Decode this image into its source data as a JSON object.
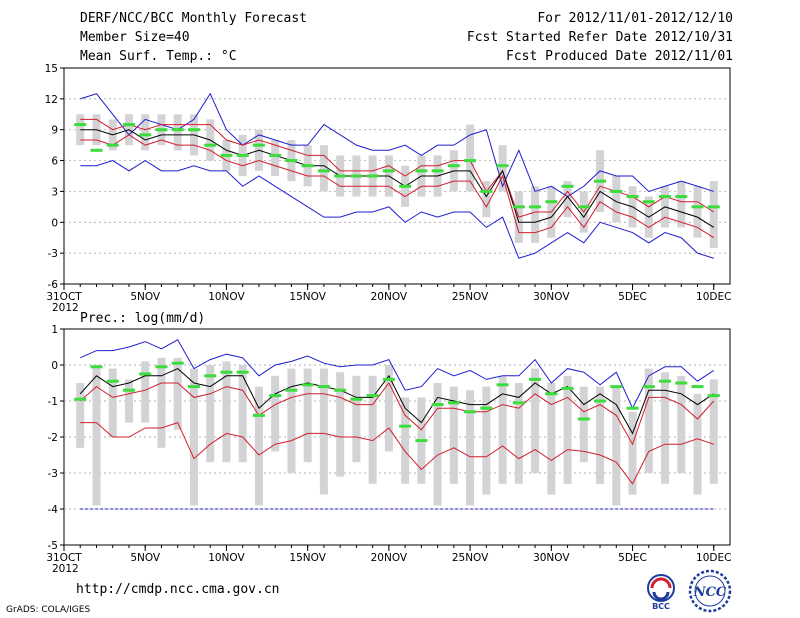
{
  "header": {
    "title": "DERF/NCC/BCC Monthly Forecast",
    "member_size": "Member Size=40",
    "variable": "Mean Surf. Temp.: °C",
    "period": "For 2012/11/01-2012/12/10",
    "fcst_start": "Fcst Started Refer Date 2012/10/31",
    "fcst_produced": "Fcst Produced Date 2012/11/01"
  },
  "footer": {
    "url": "http://cmdp.ncc.cma.gov.cn",
    "grads": "GrADS: COLA/IGES"
  },
  "logos": {
    "bcc": "BCC",
    "ncc": "NCC"
  },
  "colors": {
    "box": "#d3d3d6",
    "median": "#000000",
    "inner": "#d21e2d",
    "outer": "#1e1ed2",
    "obs": "#3cdc3c"
  },
  "chart_data": [
    {
      "type": "line",
      "title": "Mean Surf. Temp.: °C",
      "x": [
        1,
        2,
        3,
        4,
        5,
        6,
        7,
        8,
        9,
        10,
        11,
        12,
        13,
        14,
        15,
        16,
        17,
        18,
        19,
        20,
        21,
        22,
        23,
        24,
        25,
        26,
        27,
        28,
        29,
        30,
        31,
        32,
        33,
        34,
        35,
        36,
        37,
        38,
        39,
        40
      ],
      "x_ticks": [
        "31OCT",
        "5NOV",
        "10NOV",
        "15NOV",
        "20NOV",
        "25NOV",
        "30NOV",
        "5DEC",
        "10DEC"
      ],
      "x_tick_values": [
        0,
        5,
        10,
        15,
        20,
        25,
        30,
        35,
        40
      ],
      "x_first_sub": "2012",
      "ylim": [
        -6,
        15
      ],
      "y_ticks": [
        "-6",
        "-3",
        "0",
        "3",
        "6",
        "9",
        "12",
        "15"
      ],
      "y_tick_values": [
        -6,
        -3,
        0,
        3,
        6,
        9,
        12,
        15
      ],
      "series": [
        {
          "name": "Max",
          "color": "blue",
          "values": [
            12.0,
            12.5,
            10.5,
            8.5,
            10.0,
            9.5,
            9.0,
            10.0,
            12.5,
            9.0,
            7.5,
            8.5,
            8.0,
            7.5,
            7.5,
            9.5,
            8.5,
            7.5,
            7.0,
            7.0,
            7.5,
            6.5,
            7.5,
            7.5,
            8.5,
            9.0,
            3.5,
            7.0,
            3.0,
            3.5,
            2.5,
            3.5,
            5.0,
            4.5,
            4.5,
            3.0,
            3.5,
            4.0,
            3.5,
            3.0
          ]
        },
        {
          "name": "Upper",
          "color": "red",
          "values": [
            10.0,
            10.0,
            9.0,
            9.5,
            9.0,
            9.5,
            9.5,
            9.5,
            9.5,
            8.0,
            7.5,
            8.0,
            7.5,
            7.0,
            6.5,
            6.5,
            5.0,
            5.0,
            5.0,
            5.5,
            4.5,
            5.5,
            5.5,
            6.0,
            6.0,
            3.0,
            5.0,
            0.5,
            1.0,
            1.0,
            3.0,
            1.0,
            3.5,
            3.0,
            2.5,
            1.5,
            2.5,
            2.0,
            2.0,
            1.0
          ]
        },
        {
          "name": "Median",
          "color": "black",
          "values": [
            9.0,
            9.0,
            8.5,
            9.0,
            8.0,
            8.5,
            8.5,
            8.5,
            8.0,
            7.0,
            6.5,
            7.0,
            6.5,
            6.0,
            5.5,
            5.5,
            4.5,
            4.5,
            4.5,
            4.5,
            3.5,
            4.5,
            4.5,
            5.0,
            5.0,
            2.5,
            5.0,
            0.0,
            0.0,
            0.5,
            2.5,
            0.5,
            3.0,
            2.0,
            1.5,
            0.5,
            1.5,
            1.0,
            0.5,
            -0.5
          ]
        },
        {
          "name": "Lower",
          "color": "red",
          "values": [
            8.0,
            8.0,
            7.5,
            8.5,
            7.5,
            8.0,
            7.5,
            7.5,
            7.0,
            6.0,
            5.5,
            6.0,
            5.5,
            5.0,
            4.5,
            4.5,
            3.5,
            3.5,
            3.5,
            3.5,
            2.5,
            3.5,
            3.5,
            4.0,
            4.0,
            1.5,
            4.5,
            -1.0,
            -1.0,
            -0.5,
            1.5,
            -0.5,
            2.0,
            1.0,
            0.5,
            -0.5,
            0.5,
            0.0,
            -0.5,
            -1.5
          ]
        },
        {
          "name": "Min",
          "color": "blue",
          "values": [
            5.5,
            5.5,
            6.0,
            5.0,
            6.0,
            5.0,
            5.0,
            5.5,
            5.0,
            5.0,
            3.5,
            4.5,
            3.5,
            2.5,
            1.5,
            0.5,
            0.5,
            1.0,
            1.0,
            1.5,
            0.0,
            1.0,
            0.5,
            1.0,
            1.0,
            -0.5,
            0.5,
            -3.5,
            -3.0,
            -2.0,
            -1.0,
            -2.0,
            0.0,
            -0.5,
            -1.0,
            -2.0,
            -1.0,
            -1.5,
            -3.0,
            -3.5
          ]
        },
        {
          "name": "Observed",
          "color": "green",
          "values": [
            9.5,
            7.0,
            7.5,
            9.5,
            8.5,
            9.0,
            9.0,
            9.0,
            7.5,
            6.5,
            6.5,
            7.5,
            6.5,
            6.0,
            5.5,
            5.0,
            4.5,
            4.5,
            4.5,
            5.0,
            3.5,
            5.0,
            5.0,
            5.5,
            6.0,
            3.0,
            5.5,
            1.5,
            1.5,
            2.0,
            3.5,
            1.5,
            4.0,
            3.0,
            2.5,
            2.0,
            2.5,
            2.5,
            1.5,
            1.5
          ]
        }
      ],
      "box_top": [
        10.5,
        10.5,
        10.0,
        10.5,
        10.5,
        10.5,
        10.5,
        10.5,
        10.0,
        8.0,
        8.5,
        9.0,
        8.0,
        8.0,
        7.5,
        7.5,
        6.5,
        6.5,
        6.5,
        6.5,
        5.5,
        6.5,
        6.5,
        7.0,
        9.5,
        4.0,
        7.5,
        3.0,
        3.5,
        3.5,
        4.0,
        3.0,
        7.0,
        4.5,
        3.5,
        2.5,
        3.5,
        4.0,
        3.5,
        4.0
      ],
      "box_bottom": [
        7.5,
        7.5,
        7.0,
        7.5,
        7.0,
        7.5,
        7.0,
        6.5,
        6.0,
        5.0,
        4.5,
        5.0,
        4.5,
        4.0,
        3.5,
        3.0,
        2.5,
        2.5,
        2.5,
        2.5,
        1.5,
        2.5,
        2.5,
        3.0,
        3.0,
        0.5,
        3.0,
        -2.0,
        -2.0,
        -1.5,
        0.5,
        -1.0,
        1.0,
        0.0,
        -0.5,
        -1.5,
        -0.5,
        -0.5,
        -1.5,
        -2.5
      ]
    },
    {
      "type": "line",
      "title": "Prec.: log(mm/d)",
      "x": [
        1,
        2,
        3,
        4,
        5,
        6,
        7,
        8,
        9,
        10,
        11,
        12,
        13,
        14,
        15,
        16,
        17,
        18,
        19,
        20,
        21,
        22,
        23,
        24,
        25,
        26,
        27,
        28,
        29,
        30,
        31,
        32,
        33,
        34,
        35,
        36,
        37,
        38,
        39,
        40
      ],
      "x_ticks": [
        "31OCT",
        "5NOV",
        "10NOV",
        "15NOV",
        "20NOV",
        "25NOV",
        "30NOV",
        "5DEC",
        "10DEC"
      ],
      "x_tick_values": [
        0,
        5,
        10,
        15,
        20,
        25,
        30,
        35,
        40
      ],
      "x_first_sub": "2012",
      "ylim": [
        -5,
        1
      ],
      "y_ticks": [
        "-5",
        "-4",
        "-3",
        "-2",
        "-1",
        "0",
        "1"
      ],
      "y_tick_values": [
        -5,
        -4,
        -3,
        -2,
        -1,
        0,
        1
      ],
      "series": [
        {
          "name": "Max",
          "color": "blue",
          "values": [
            0.2,
            0.4,
            0.4,
            0.5,
            0.65,
            0.45,
            0.7,
            -0.1,
            0.15,
            0.3,
            0.2,
            -0.3,
            0.0,
            0.1,
            0.25,
            0.05,
            -0.05,
            0.0,
            0.0,
            0.15,
            -0.7,
            -0.6,
            -0.1,
            -0.3,
            -0.15,
            -0.4,
            -0.3,
            -0.3,
            0.15,
            -0.5,
            -0.1,
            -0.2,
            -0.55,
            -0.2,
            -1.2,
            -0.3,
            -0.05,
            -0.05,
            -0.45,
            -0.15
          ]
        },
        {
          "name": "Upper",
          "color": "black",
          "values": [
            -0.8,
            -0.3,
            -0.6,
            -0.5,
            -0.3,
            -0.3,
            -0.1,
            -0.5,
            -0.6,
            -0.3,
            -0.3,
            -1.2,
            -0.8,
            -0.6,
            -0.5,
            -0.6,
            -0.7,
            -0.9,
            -0.9,
            -0.3,
            -1.2,
            -1.6,
            -0.9,
            -1.0,
            -1.1,
            -1.1,
            -0.8,
            -0.9,
            -0.5,
            -0.8,
            -0.6,
            -1.1,
            -0.8,
            -1.1,
            -1.9,
            -0.7,
            -0.7,
            -0.8,
            -1.1,
            -0.8
          ]
        },
        {
          "name": "Median",
          "color": "red",
          "values": [
            -1.0,
            -0.6,
            -0.9,
            -0.8,
            -0.7,
            -0.5,
            -0.5,
            -0.9,
            -0.8,
            -0.6,
            -0.7,
            -1.4,
            -1.1,
            -0.9,
            -0.8,
            -0.8,
            -0.9,
            -1.1,
            -1.1,
            -0.5,
            -1.4,
            -1.8,
            -1.2,
            -1.2,
            -1.3,
            -1.3,
            -1.1,
            -1.2,
            -0.8,
            -1.1,
            -0.9,
            -1.3,
            -1.1,
            -1.4,
            -2.2,
            -0.9,
            -0.9,
            -1.1,
            -1.5,
            -1.0
          ]
        },
        {
          "name": "Lower",
          "color": "red",
          "values": [
            -1.6,
            -1.6,
            -2.0,
            -2.0,
            -1.75,
            -1.75,
            -1.6,
            -2.6,
            -2.2,
            -1.9,
            -2.0,
            -2.5,
            -2.2,
            -2.1,
            -1.9,
            -1.9,
            -2.0,
            -2.0,
            -2.1,
            -1.75,
            -2.4,
            -2.9,
            -2.5,
            -2.3,
            -2.55,
            -2.55,
            -2.25,
            -2.6,
            -2.35,
            -2.65,
            -2.35,
            -2.4,
            -2.5,
            -2.7,
            -3.3,
            -2.4,
            -2.2,
            -2.2,
            -2.05,
            -2.2
          ]
        },
        {
          "name": "Min",
          "color": "blue",
          "values": [
            -4.0,
            -4.0,
            -4.0,
            -4.0,
            -4.0,
            -4.0,
            -4.0,
            -4.0,
            -4.0,
            -4.0,
            -4.0,
            -4.0,
            -4.0,
            -4.0,
            -4.0,
            -4.0,
            -4.0,
            -4.0,
            -4.0,
            -4.0,
            -4.0,
            -4.0,
            -4.0,
            -4.0,
            -4.0,
            -4.0,
            -4.0,
            -4.0,
            -4.0,
            -4.0,
            -4.0,
            -4.0,
            -4.0,
            -4.0,
            -4.0,
            -4.0,
            -4.0,
            -4.0,
            -4.0,
            -4.0
          ]
        },
        {
          "name": "Observed",
          "color": "green",
          "values": [
            -0.95,
            -0.05,
            -0.45,
            -0.7,
            -0.25,
            -0.05,
            0.05,
            -0.6,
            -0.3,
            -0.2,
            -0.2,
            -1.4,
            -0.85,
            -0.7,
            -0.55,
            -0.6,
            -0.7,
            -0.95,
            -0.85,
            -0.4,
            -1.7,
            -2.1,
            -1.1,
            -1.05,
            -1.3,
            -1.2,
            -0.55,
            -1.05,
            -0.4,
            -0.8,
            -0.65,
            -1.5,
            -1.0,
            -0.6,
            -1.2,
            -0.6,
            -0.45,
            -0.5,
            -0.6,
            -0.85
          ]
        }
      ],
      "box_top": [
        -0.5,
        0.0,
        -0.1,
        -0.4,
        0.1,
        0.2,
        0.2,
        -0.1,
        0.0,
        0.1,
        0.0,
        -0.6,
        -0.3,
        -0.1,
        -0.1,
        -0.1,
        -0.2,
        -0.3,
        -0.3,
        0.0,
        -0.9,
        -0.9,
        -0.5,
        -0.6,
        -0.7,
        -0.6,
        -0.3,
        -0.5,
        -0.1,
        -0.5,
        -0.3,
        -0.6,
        -0.6,
        -0.6,
        -1.3,
        -0.1,
        -0.2,
        -0.3,
        -0.8,
        -0.4
      ],
      "box_bottom": [
        -2.3,
        -3.9,
        -2.0,
        -1.6,
        -1.6,
        -2.3,
        -1.8,
        -3.9,
        -2.7,
        -2.7,
        -2.7,
        -3.9,
        -2.4,
        -3.0,
        -2.7,
        -3.6,
        -3.1,
        -2.7,
        -3.3,
        -2.4,
        -3.3,
        -3.3,
        -3.9,
        -3.3,
        -3.9,
        -3.6,
        -3.3,
        -3.3,
        -3.0,
        -3.6,
        -3.3,
        -2.7,
        -3.3,
        -3.9,
        -3.6,
        -3.0,
        -3.3,
        -3.0,
        -3.6,
        -3.3
      ]
    }
  ]
}
